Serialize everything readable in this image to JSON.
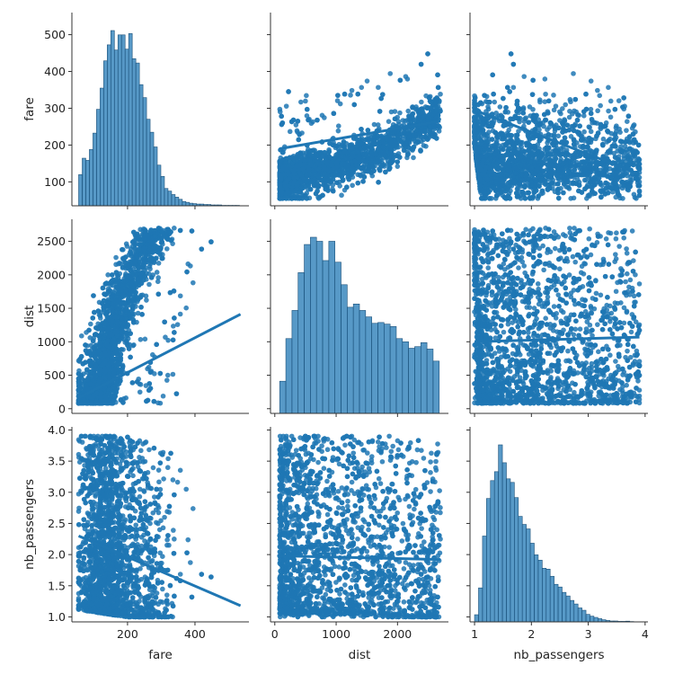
{
  "chart_data": {
    "type": "scatter",
    "variables": [
      "fare",
      "dist",
      "nb_passengers"
    ],
    "colors": {
      "marker": "#1f77b4",
      "hist": "#1f77b4"
    },
    "axes": {
      "fare": {
        "lim": [
          35,
          560
        ],
        "ticks": [
          100,
          200,
          300,
          400,
          500
        ],
        "xticks": [
          200,
          400
        ]
      },
      "dist": {
        "lim": [
          -70,
          2830
        ],
        "ticks": [
          0,
          500,
          1000,
          1500,
          2000,
          2500
        ],
        "xticks": [
          0,
          1000,
          2000
        ]
      },
      "nb_passengers": {
        "lim": [
          0.92,
          4.05
        ],
        "ticks": [
          1.0,
          1.5,
          2.0,
          2.5,
          3.0,
          3.5,
          4.0
        ],
        "xticks": [
          1,
          2,
          3,
          4
        ]
      }
    },
    "ranges": {
      "fare": [
        55,
        535
      ],
      "dist": [
        80,
        2700
      ],
      "nb_passengers": [
        1.0,
        3.9
      ]
    },
    "histograms": {
      "fare": {
        "bin_start": 55,
        "bin_width": 10.6,
        "counts": [
          72,
          110,
          105,
          130,
          168,
          223,
          272,
          335,
          372,
          405,
          360,
          395,
          395,
          362,
          398,
          340,
          330,
          280,
          250,
          200,
          170,
          136,
          94,
          68,
          40,
          34,
          26,
          20,
          15,
          10,
          8,
          6,
          5,
          4,
          4,
          3,
          3,
          2,
          2,
          2,
          1,
          1,
          1,
          1,
          1
        ]
      },
      "dist": {
        "bin_start": 80,
        "bin_width": 100,
        "counts": [
          200,
          465,
          640,
          875,
          1050,
          1095,
          1070,
          950,
          1070,
          940,
          800,
          660,
          680,
          640,
          600,
          560,
          565,
          555,
          540,
          465,
          445,
          405,
          415,
          440,
          400,
          325
        ]
      },
      "nb_passengers": {
        "bin_start": 1.0,
        "bin_width": 0.07,
        "counts": [
          40,
          190,
          480,
          690,
          790,
          840,
          990,
          890,
          800,
          780,
          695,
          590,
          545,
          520,
          440,
          375,
          345,
          300,
          295,
          255,
          210,
          195,
          165,
          145,
          120,
          100,
          78,
          65,
          42,
          32,
          25,
          18,
          12,
          8,
          5,
          5,
          3,
          3,
          4,
          2,
          1
        ]
      }
    },
    "regression": {
      "fare_dist": {
        "slope": 2.6,
        "intercept": 20
      },
      "passengers_fare": {
        "slope": -60,
        "intercept": 355
      },
      "passengers_dist": {
        "slope": 110,
        "intercept": 820
      }
    }
  }
}
